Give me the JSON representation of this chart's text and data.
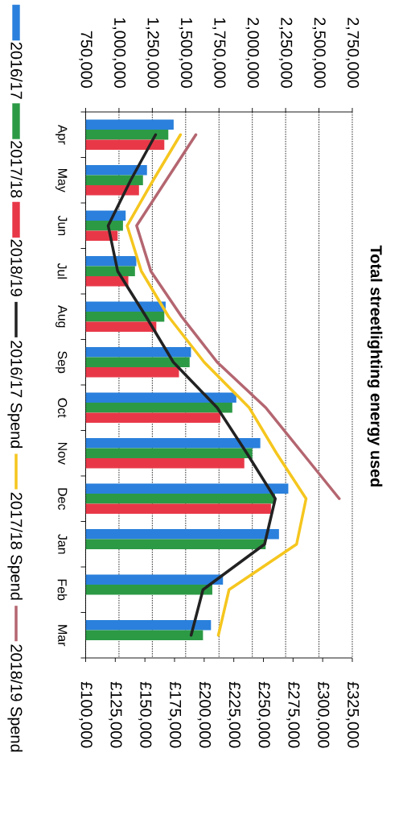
{
  "chart_data": {
    "type": "bar",
    "orientation": "horizontal",
    "title": "Total streetlighting energy used",
    "categories": [
      "Apr",
      "May",
      "Jun",
      "Jul",
      "Aug",
      "Sep",
      "Oct",
      "Nov",
      "Dec",
      "Jan",
      "Feb",
      "Mar"
    ],
    "series": [
      {
        "name": "2016/17",
        "color": "#2a80dc",
        "values": [
          1410000,
          1210000,
          1050000,
          1130000,
          1350000,
          1540000,
          1880000,
          2060000,
          2270000,
          2200000,
          1780000,
          1690000
        ]
      },
      {
        "name": "2017/18",
        "color": "#2c9a45",
        "values": [
          1370000,
          1180000,
          1030000,
          1120000,
          1340000,
          1530000,
          1850000,
          2000000,
          2170000,
          2100000,
          1700000,
          1630000
        ]
      },
      {
        "name": "2018/19",
        "color": "#e83848",
        "values": [
          1340000,
          1150000,
          990000,
          1070000,
          1280000,
          1450000,
          1760000,
          1940000,
          2140000,
          null,
          null,
          null
        ]
      },
      {
        "name": "2016/17 Spend",
        "type": "line",
        "axis": "x2",
        "color": "#222222",
        "values": [
          159000,
          138000,
          119000,
          127000,
          151000,
          174000,
          211000,
          236000,
          260000,
          251000,
          199000,
          189000
        ]
      },
      {
        "name": "2017/18 Spend",
        "type": "line",
        "axis": "x2",
        "color": "#f5c61e",
        "values": [
          180000,
          157000,
          135000,
          147000,
          170000,
          200000,
          238000,
          261000,
          286000,
          278000,
          221000,
          212000
        ]
      },
      {
        "name": "2018/19 Spend",
        "type": "line",
        "axis": "x2",
        "color": "#b46670",
        "values": [
          193000,
          168000,
          143000,
          155000,
          181000,
          211000,
          252000,
          283000,
          314000,
          null,
          null,
          null
        ]
      }
    ],
    "xlim": [
      750000,
      2750000
    ],
    "xticks": [
      {
        "value": 750000,
        "label": "750,000"
      },
      {
        "value": 1000000,
        "label": "1,000,000"
      },
      {
        "value": 1250000,
        "label": "1,250,000"
      },
      {
        "value": 1500000,
        "label": "1,500,000"
      },
      {
        "value": 1750000,
        "label": "1,750,000"
      },
      {
        "value": 2000000,
        "label": "2,000,000"
      },
      {
        "value": 2250000,
        "label": "2,250,000"
      },
      {
        "value": 2500000,
        "label": "2,500,000"
      },
      {
        "value": 2750000,
        "label": "2,750,000"
      }
    ],
    "x2lim": [
      100000,
      325000
    ],
    "x2ticks": [
      {
        "value": 100000,
        "label": "£100,000"
      },
      {
        "value": 125000,
        "label": "£125,000"
      },
      {
        "value": 150000,
        "label": "£150,000"
      },
      {
        "value": 175000,
        "label": "£175,000"
      },
      {
        "value": 200000,
        "label": "£200,000"
      },
      {
        "value": 225000,
        "label": "£225,000"
      },
      {
        "value": 250000,
        "label": "£250,000"
      },
      {
        "value": 275000,
        "label": "£275,000"
      },
      {
        "value": 300000,
        "label": "£300,000"
      },
      {
        "value": 325000,
        "label": "£325,000"
      }
    ],
    "grid": "x",
    "legend": "left"
  }
}
